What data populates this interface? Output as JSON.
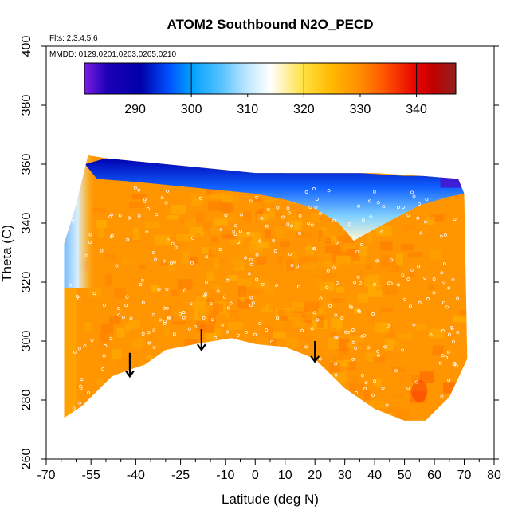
{
  "chart_data": {
    "type": "heatmap",
    "title": "ATOM2 Southbound N2O_PECD",
    "subtitle_flights": "Flts: 2,3,4,5,6",
    "subtitle_dates": "MMDD: 0129,0201,0203,0205,0210",
    "xlabel": "Latitude (deg N)",
    "ylabel": "Theta (C)",
    "xlim": [
      -70,
      80
    ],
    "ylim": [
      260,
      400
    ],
    "x_ticks": [
      -70,
      -55,
      -40,
      -25,
      -10,
      0,
      10,
      20,
      30,
      40,
      50,
      60,
      70,
      80
    ],
    "x_tick_labels": [
      "-70",
      "-55",
      "-40",
      "-25",
      "-10",
      "0",
      "10",
      "20",
      "30",
      "40",
      "50",
      "60",
      "70",
      "80"
    ],
    "x_minor_ticks": [
      -65,
      -60,
      -50,
      -45,
      -35,
      -30,
      -20,
      -15,
      -5,
      5,
      15,
      25,
      35,
      45,
      55,
      65,
      75
    ],
    "y_ticks": [
      260,
      280,
      300,
      320,
      340,
      360,
      380,
      400
    ],
    "y_tick_labels": [
      "260",
      "280",
      "300",
      "320",
      "340",
      "360",
      "380",
      "400"
    ],
    "colorbar": {
      "range": [
        281,
        347
      ],
      "ticks": [
        290,
        300,
        310,
        320,
        330,
        340
      ],
      "tick_labels": [
        "290",
        "300",
        "310",
        "320",
        "330",
        "340"
      ],
      "stops": [
        {
          "value": 281,
          "color": "#7a1ee0"
        },
        {
          "value": 285,
          "color": "#1c00b8"
        },
        {
          "value": 291,
          "color": "#0000a8"
        },
        {
          "value": 296,
          "color": "#0050ff"
        },
        {
          "value": 300,
          "color": "#00a0ff"
        },
        {
          "value": 305,
          "color": "#50c0ff"
        },
        {
          "value": 310,
          "color": "#c0e8ff"
        },
        {
          "value": 314,
          "color": "#ffffff"
        },
        {
          "value": 320,
          "color": "#ffe040"
        },
        {
          "value": 325,
          "color": "#ffb800"
        },
        {
          "value": 330,
          "color": "#ff8c00"
        },
        {
          "value": 334,
          "color": "#ff5a00"
        },
        {
          "value": 340,
          "color": "#e80000"
        },
        {
          "value": 343,
          "color": "#c00000"
        },
        {
          "value": 347,
          "color": "#902020"
        }
      ]
    },
    "field": {
      "base_value": 329,
      "lower_boundary": [
        [
          -64,
          274
        ],
        [
          -58,
          278
        ],
        [
          -48,
          288
        ],
        [
          -43,
          290
        ],
        [
          -37,
          292
        ],
        [
          -30,
          297
        ],
        [
          -20,
          299
        ],
        [
          -8,
          301
        ],
        [
          0,
          299
        ],
        [
          10,
          298
        ],
        [
          20,
          294
        ],
        [
          30,
          284
        ],
        [
          40,
          277
        ],
        [
          50,
          273
        ],
        [
          57,
          273
        ],
        [
          65,
          281
        ],
        [
          71,
          294
        ]
      ],
      "upper_boundary": [
        [
          -64,
          333
        ],
        [
          -60,
          346
        ],
        [
          -56,
          363
        ],
        [
          -50,
          362
        ],
        [
          -30,
          360
        ],
        [
          -10,
          358
        ],
        [
          0,
          357
        ],
        [
          20,
          357
        ],
        [
          30,
          357
        ],
        [
          40,
          357
        ],
        [
          56,
          356
        ],
        [
          68,
          355
        ],
        [
          70,
          350
        ]
      ],
      "stratospheric_cap": [
        [
          -57,
          360
        ],
        [
          -50,
          362
        ],
        [
          -30,
          361
        ],
        [
          -10,
          359
        ],
        [
          10,
          357
        ],
        [
          25,
          357
        ],
        [
          35,
          357
        ],
        [
          50,
          356
        ],
        [
          68,
          356
        ],
        [
          70,
          350
        ],
        [
          65,
          349
        ],
        [
          55,
          346
        ],
        [
          40,
          338
        ],
        [
          33,
          334
        ],
        [
          28,
          340
        ],
        [
          20,
          345
        ],
        [
          10,
          348
        ],
        [
          0,
          350
        ],
        [
          -20,
          352
        ],
        [
          -40,
          354
        ],
        [
          -53,
          355
        ]
      ],
      "southern_edge_band_value": 312
    },
    "annotations": [
      {
        "type": "down-arrow",
        "x": -42,
        "y_top": 296,
        "y_bottom": 288
      },
      {
        "type": "down-arrow",
        "x": -18,
        "y_top": 304,
        "y_bottom": 297
      },
      {
        "type": "down-arrow",
        "x": 20,
        "y_top": 300,
        "y_bottom": 293
      }
    ],
    "observation_points_description": "open circles marking aircraft sampling locations"
  }
}
